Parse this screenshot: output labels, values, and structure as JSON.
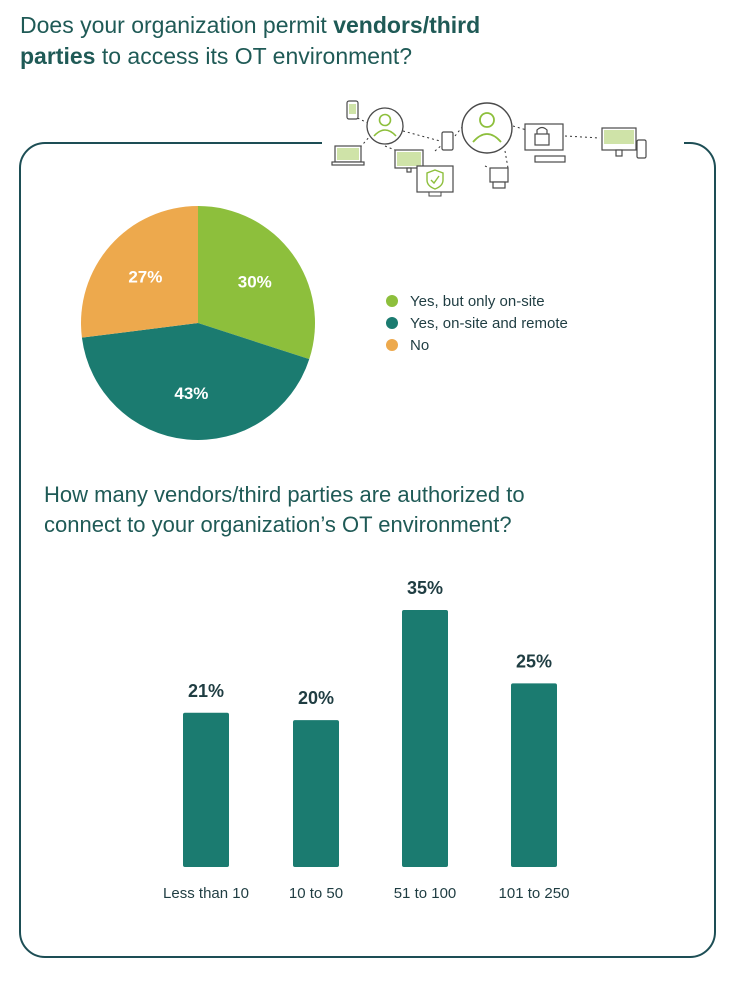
{
  "title": {
    "part1": "Does your organization permit ",
    "bold1": "vendors/third",
    "bold2": "parties",
    "part2": " to access its OT environment?"
  },
  "subtitle": {
    "line1": "How many vendors/third parties are authorized to",
    "line2": "connect to your organization’s OT environment?"
  },
  "icons": [
    "user-icon",
    "user-icon",
    "phone-icon",
    "laptop-icon",
    "monitor-icon",
    "tablet-icon",
    "lock-icon",
    "shield-check-icon",
    "desktop-icon"
  ],
  "colors": {
    "green": "#8dbf3c",
    "teal": "#1b7b70",
    "orange": "#eda94d",
    "frame": "#1d4e55",
    "title": "#1f5a56"
  },
  "chart_data": [
    {
      "type": "pie",
      "title": "Does your organization permit vendors/third parties to access its OT environment?",
      "slices": [
        {
          "label": "Yes, but only on-site",
          "value": 30,
          "display": "30%",
          "color": "#8dbf3c"
        },
        {
          "label": "Yes, on-site and remote",
          "value": 43,
          "display": "43%",
          "color": "#1b7b70"
        },
        {
          "label": "No",
          "value": 27,
          "display": "27%",
          "color": "#eda94d"
        }
      ],
      "legend": "right"
    },
    {
      "type": "bar",
      "title": "How many vendors/third parties are authorized to connect to your organization’s OT environment?",
      "categories": [
        "Less than 10",
        "10 to 50",
        "51 to 100",
        "101 to 250"
      ],
      "values": [
        21,
        20,
        35,
        25
      ],
      "labels": [
        "21%",
        "20%",
        "35%",
        "25%"
      ],
      "color": "#1b7b70",
      "ylim": [
        0,
        35
      ]
    }
  ]
}
